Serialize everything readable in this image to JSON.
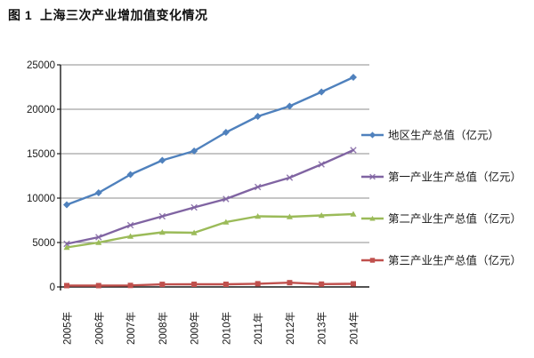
{
  "chart_data": {
    "type": "line",
    "title": "图 1  上海三次产业增加值变化情况",
    "categories": [
      "2005年",
      "2006年",
      "2007年",
      "2008年",
      "2009年",
      "2010年",
      "2011年",
      "2012年",
      "2013年",
      "2014年"
    ],
    "series": [
      {
        "name": "地区生产总值（亿元）",
        "color": "#4F81BD",
        "marker": "diamond",
        "values": [
          9250,
          10600,
          12650,
          14250,
          15300,
          17400,
          19200,
          20350,
          21950,
          23600
        ]
      },
      {
        "name": "第一产业生产总值（亿元）",
        "color": "#8064A2",
        "marker": "x",
        "values": [
          4850,
          5600,
          6950,
          7950,
          8950,
          9900,
          11250,
          12300,
          13800,
          15400
        ]
      },
      {
        "name": "第二产业生产总值（亿元）",
        "color": "#9BBB59",
        "marker": "triangle",
        "values": [
          4450,
          5000,
          5700,
          6150,
          6100,
          7300,
          7950,
          7900,
          8050,
          8200
        ]
      },
      {
        "name": "第三产业生产总值（亿元）",
        "color": "#C0504D",
        "marker": "square",
        "values": [
          150,
          150,
          170,
          290,
          300,
          300,
          360,
          480,
          320,
          350
        ]
      }
    ],
    "xlabel": "",
    "ylabel": "",
    "ylim": [
      0,
      25000
    ],
    "y_axis": {
      "min": 0,
      "max": 25000,
      "step": 5000,
      "tick_labels": [
        "0",
        "5000",
        "10000",
        "15000",
        "20000",
        "25000"
      ]
    },
    "grid": true,
    "legend_position": "right",
    "colors": {
      "axis": "#1a1a1a",
      "gridline": "#8e8e8e",
      "text": "#1a1a1a",
      "background": "#ffffff"
    }
  }
}
